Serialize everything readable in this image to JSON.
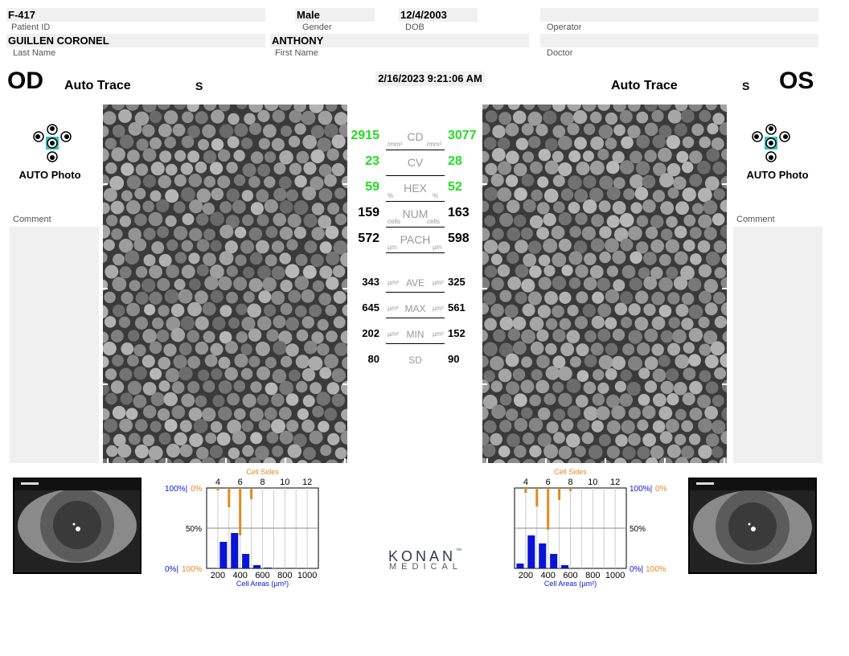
{
  "header": {
    "patient_id": "F-417",
    "patient_id_label": "Patient ID",
    "gender": "Male",
    "gender_label": "Gender",
    "dob": "12/4/2003",
    "dob_label": "DOB",
    "operator": "",
    "operator_label": "Operator",
    "last_name": "GUILLEN  CORONEL",
    "last_name_label": "Last Name",
    "first_name": "ANTHONY",
    "first_name_label": "First Name",
    "doctor": "",
    "doctor_label": "Doctor"
  },
  "exam_datetime": "2/16/2023 9:21:06 AM",
  "od": {
    "eye": "OD",
    "mode": "Auto Trace",
    "s": "S",
    "photo_label": "AUTO Photo",
    "comment_label": "Comment"
  },
  "os": {
    "eye": "OS",
    "mode": "Auto Trace",
    "s": "S",
    "photo_label": "AUTO Photo",
    "comment_label": "Comment"
  },
  "stats": [
    {
      "label": "CD",
      "od": "2915",
      "os": "3077",
      "unit_left": "/mm²",
      "unit_right": "/mm²",
      "color": "#22dd22"
    },
    {
      "label": "CV",
      "od": "23",
      "os": "28",
      "unit_left": "",
      "unit_right": "",
      "color": "#22dd22"
    },
    {
      "label": "HEX",
      "od": "59",
      "os": "52",
      "unit_left": "%",
      "unit_right": "%",
      "color": "#22dd22"
    },
    {
      "label": "NUM",
      "od": "159",
      "os": "163",
      "unit_left": "cells",
      "unit_right": "cells",
      "color": "#000000"
    },
    {
      "label": "PACH",
      "od": "572",
      "os": "598",
      "unit_left": "µm",
      "unit_right": "µm",
      "color": "#000000"
    },
    {
      "label": "AVE",
      "od": "343",
      "os": "325",
      "unit_left": "µm²",
      "unit_right": "µm²",
      "color": "#000000"
    },
    {
      "label": "MAX",
      "od": "645",
      "os": "561",
      "unit_left": "µm²",
      "unit_right": "µm²",
      "color": "#000000"
    },
    {
      "label": "MIN",
      "od": "202",
      "os": "152",
      "unit_left": "µm²",
      "unit_right": "µm²",
      "color": "#000000"
    },
    {
      "label": "SD",
      "od": "80",
      "os": "90",
      "unit_left": "",
      "unit_right": "",
      "color": "#000000"
    }
  ],
  "brand": {
    "name": "KONAN",
    "tm": "™",
    "sub": "MEDICAL"
  },
  "chart_data": [
    {
      "type": "bar",
      "eye": "OD",
      "top_title": "Cell Sides",
      "top_ticks": [
        "4",
        "6",
        "8",
        "10",
        "12"
      ],
      "xlabel": "Cell Areas  (µm²)",
      "x_ticks": [
        "200",
        "400",
        "600",
        "800",
        "1000"
      ],
      "left_labels": {
        "top_blue": "100%",
        "top_orange": "0%",
        "mid": "50%",
        "bottom_blue": "0%",
        "bottom_orange": "100%"
      },
      "area_bins": [
        250,
        350,
        450,
        550,
        650,
        750,
        850,
        950
      ],
      "area_percent": [
        33,
        44,
        18,
        4,
        1,
        0,
        0,
        0
      ],
      "sides": [
        4,
        5,
        6,
        7
      ],
      "sides_percent": [
        3,
        24,
        59,
        14
      ],
      "colors": {
        "area": "#0a14d4",
        "sides": "#e08a1e"
      }
    },
    {
      "type": "bar",
      "eye": "OS",
      "top_title": "Cell Sides",
      "top_ticks": [
        "4",
        "6",
        "8",
        "10",
        "12"
      ],
      "xlabel": "Cell Areas  (µm²)",
      "x_ticks": [
        "200",
        "400",
        "600",
        "800",
        "1000"
      ],
      "left_labels": {
        "top_blue": "100%",
        "top_orange": "0%",
        "mid": "50%",
        "bottom_blue": "0%",
        "bottom_orange": "100%"
      },
      "area_bins": [
        150,
        250,
        350,
        450,
        550,
        650,
        750,
        850,
        950
      ],
      "area_percent": [
        6,
        41,
        31,
        18,
        4,
        0,
        0,
        0,
        0
      ],
      "sides": [
        4,
        5,
        6,
        7,
        8
      ],
      "sides_percent": [
        6,
        23,
        52,
        15,
        4
      ],
      "colors": {
        "area": "#0a14d4",
        "sides": "#e08a1e"
      }
    }
  ]
}
